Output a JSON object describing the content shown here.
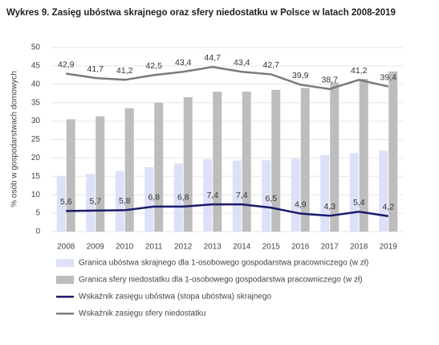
{
  "chart_data": {
    "type": "bar-line",
    "title": "Wykres 9. Zasięg ubóstwa skrajnego oraz sfery niedostatku w Polsce w latach 2008-2019",
    "y_label": "% osób w gospodarstwach domowych",
    "categories": [
      "2008",
      "2009",
      "2010",
      "2011",
      "2012",
      "2013",
      "2014",
      "2015",
      "2016",
      "2017",
      "2018",
      "2019"
    ],
    "ylim": [
      0,
      50
    ],
    "yticks": [
      0,
      5,
      10,
      15,
      20,
      25,
      30,
      35,
      40,
      45,
      50
    ],
    "grid": true,
    "series": [
      {
        "name": "Granica ubóstwa skrajnego dla 1-osobowego gospodarstwa pracowniczego (w zł)",
        "type": "bar",
        "color": "#dde1f7",
        "values": [
          15,
          15.7,
          16.5,
          17.5,
          18.5,
          19.7,
          19.3,
          19.4,
          19.8,
          20.8,
          21.3,
          22
        ]
      },
      {
        "name": "Granica sfery niedostatku dla 1-osobowego gospodarstwa pracowniczego (w zł)",
        "type": "bar",
        "color": "#bdbdbd",
        "values": [
          30.5,
          31.3,
          33.5,
          35,
          36.5,
          38,
          38,
          38.5,
          39,
          40.5,
          41.5,
          43.5
        ]
      },
      {
        "name": "Wskaźnik zasięgu ubóstwa (stopa ubóstwa) skrajnego",
        "type": "line",
        "color": "#1a1a6e",
        "values": [
          5.6,
          5.7,
          5.8,
          6.8,
          6.8,
          7.4,
          7.4,
          6.5,
          4.9,
          4.3,
          5.4,
          4.2
        ],
        "value_labels": [
          "5,6",
          "5,7",
          "5,8",
          "6,8",
          "6,8",
          "7,4",
          "7,4",
          "6,5",
          "4,9",
          "4,3",
          "5,4",
          "4,2"
        ]
      },
      {
        "name": "Wskaźnik zasięgu sfery niedostatku",
        "type": "line",
        "color": "#7a7a7a",
        "values": [
          42.9,
          41.7,
          41.2,
          42.5,
          43.4,
          44.7,
          43.4,
          42.7,
          39.9,
          38.7,
          41.2,
          39.4
        ],
        "value_labels": [
          "42,9",
          "41,7",
          "41,2",
          "42,5",
          "43,4",
          "44,7",
          "43,4",
          "42,7",
          "39,9",
          "38,7",
          "41,2",
          "39,4"
        ]
      }
    ]
  }
}
